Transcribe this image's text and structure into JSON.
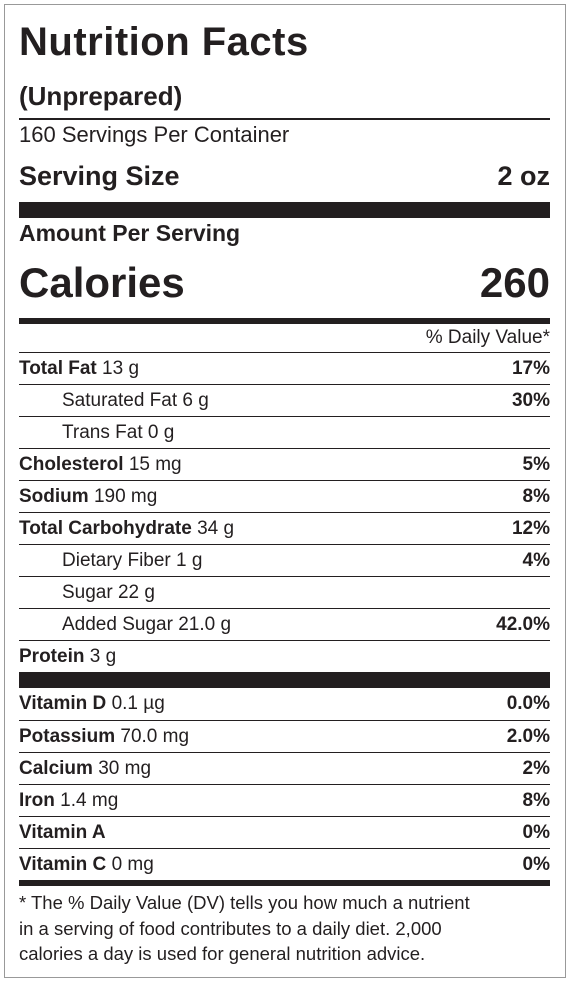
{
  "label": {
    "title": "Nutrition Facts",
    "subtitle": "(Unprepared)",
    "servings": "160 Servings Per Container",
    "serving_size": {
      "label": "Serving Size",
      "value": "2 oz"
    },
    "amount_per_serving": "Amount Per Serving",
    "calories": {
      "label": "Calories",
      "value": 260
    },
    "daily_value_header": "% Daily Value*",
    "nutrients": [
      {
        "name": "Total Fat",
        "amount": "13 g",
        "dv": "17%",
        "sub": [
          {
            "name": "Saturated Fat",
            "amount": "6 g",
            "dv": "30%"
          },
          {
            "name": "Trans Fat",
            "amount": "0 g"
          }
        ]
      },
      {
        "name": "Cholesterol",
        "amount": "15 mg",
        "dv": "5%"
      },
      {
        "name": "Sodium",
        "amount": "190 mg",
        "dv": "8%"
      },
      {
        "name": "Total Carbohydrate",
        "amount": "34 g",
        "dv": "12%",
        "sub": [
          {
            "name": "Dietary Fiber",
            "amount": "1 g",
            "dv": "4%"
          },
          {
            "name": "Sugar",
            "amount": "22 g"
          },
          {
            "name": "Added Sugar",
            "amount": "21.0 g",
            "dv": "42.0%"
          }
        ]
      },
      {
        "name": "Protein",
        "amount": "3 g"
      }
    ],
    "vitamins": [
      {
        "name": "Vitamin D",
        "amount": "0.1 µg",
        "dv": "0.0%"
      },
      {
        "name": "Potassium",
        "amount": "70.0 mg",
        "dv": "2.0%"
      },
      {
        "name": "Calcium",
        "amount": "30 mg",
        "dv": "2%"
      },
      {
        "name": "Iron",
        "amount": "1.4 mg",
        "dv": "8%"
      },
      {
        "name": "Vitamin A",
        "dv": "0%"
      },
      {
        "name": "Vitamin C",
        "amount": "0 mg",
        "dv": "0%"
      }
    ],
    "footnote": [
      "* The % Daily Value (DV) tells you how much a nutrient",
      "in a serving of food contributes to a daily diet. 2,000",
      "calories a day is used for general nutrition advice."
    ]
  }
}
